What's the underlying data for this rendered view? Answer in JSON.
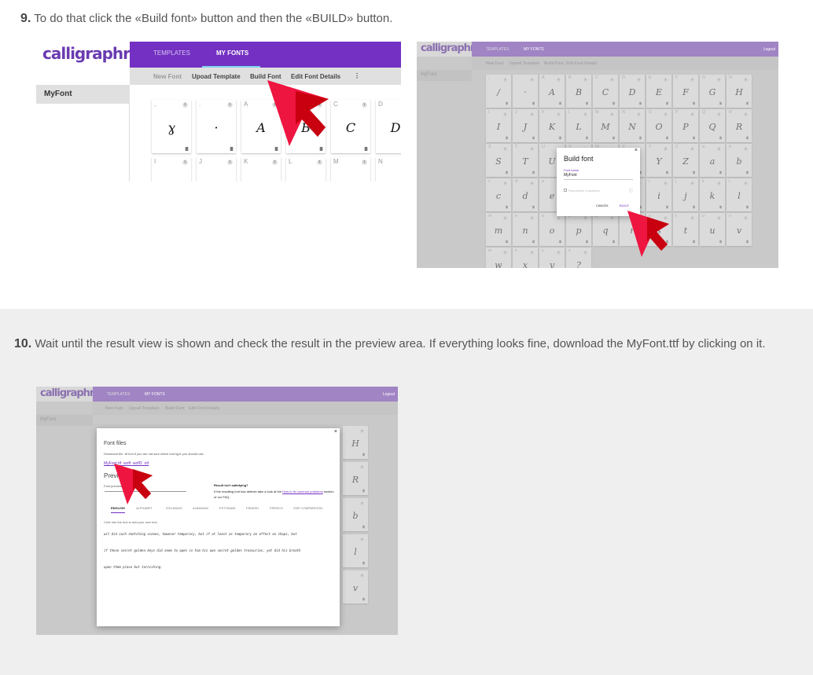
{
  "step9": {
    "number": "9.",
    "text": "To do that click the «Build font» button and then the «BUILD» button."
  },
  "step10": {
    "number": "10.",
    "text": "Wait until the result view is shown and check the result in the preview area. If everything looks fine, download the MyFont.ttf by clicking on it."
  },
  "app": {
    "logo": "calligraphr",
    "tabs": [
      "TEMPLATES",
      "MY FONTS"
    ],
    "logout": "Logout",
    "toolbar": [
      "New Font",
      "Upoad Template",
      "Build Font",
      "Edit Font Details",
      "⋮"
    ],
    "sidebar_item": "MyFont",
    "accent": "#7330c2"
  },
  "shot1": {
    "row1": [
      {
        "l": ",",
        "g": "ɣ"
      },
      {
        "l": ".",
        "g": "·"
      },
      {
        "l": "A",
        "g": "A"
      },
      {
        "l": "B",
        "g": "B"
      },
      {
        "l": "C",
        "g": "C"
      },
      {
        "l": "D",
        "g": "D"
      }
    ],
    "row2": [
      "I",
      "J",
      "K",
      "L",
      "M",
      "N"
    ]
  },
  "shot2": {
    "rows": [
      {
        "l": [
          ",",
          ".",
          "A",
          "B",
          "C",
          "D",
          "E",
          "F",
          "G",
          "H"
        ],
        "g": [
          "/",
          "·",
          "A",
          "B",
          "C",
          "D",
          "E",
          "F",
          "G",
          "H"
        ]
      },
      {
        "l": [
          "I",
          "J",
          "K",
          "L",
          "M",
          "N",
          "O",
          "P",
          "Q",
          "R"
        ],
        "g": [
          "I",
          "J",
          "K",
          "L",
          "M",
          "N",
          "O",
          "P",
          "Q",
          "R"
        ]
      },
      {
        "l": [
          "S",
          "T",
          "U",
          "V",
          "W",
          "X",
          "Y",
          "Z",
          "a",
          "b"
        ],
        "g": [
          "S",
          "T",
          "U",
          "V",
          "W",
          "X",
          "Y",
          "Z",
          "a",
          "b"
        ]
      },
      {
        "l": [
          "c",
          "d",
          "e",
          "f",
          "g",
          "h",
          "i",
          "j",
          "k",
          "l"
        ],
        "g": [
          "c",
          "d",
          "e",
          "f",
          "g",
          "h",
          "i",
          "j",
          "k",
          "l"
        ]
      },
      {
        "l": [
          "m",
          "n",
          "o",
          "p",
          "q",
          "r",
          "s",
          "t",
          "u",
          "v"
        ],
        "g": [
          "m",
          "n",
          "o",
          "p",
          "q",
          "r",
          "s",
          "t",
          "u",
          "v"
        ]
      },
      {
        "l": [
          "w",
          "x",
          "y",
          "z"
        ],
        "g": [
          "w",
          "x",
          "y",
          "?"
        ]
      }
    ],
    "dialog": {
      "title": "Build font",
      "field_label": "Font name",
      "field_value": "MyFont",
      "checkbox": "Randomize characters",
      "cancel": "CANCEL",
      "build": "BUILD"
    }
  },
  "shot3": {
    "side_glyphs": [
      "H",
      "R",
      "b",
      "l",
      "v"
    ],
    "dialog": {
      "title": "Font files",
      "desc": "Download the .ttf font if you are not sure which font type you should use.",
      "files": [
        "MyFont.ttf",
        "woff",
        "woff2",
        "otf"
      ],
      "preview": "Preview",
      "font_pre": "Font preview",
      "result_title": "Result isn't satisfying?",
      "result_text": "If the resulting font has defects take a look at the",
      "result_link": "How to fix common problems",
      "result_tail": "section of our FAQ.",
      "tabs": [
        "ENGLISH",
        "ALPHABET",
        "ICELANDIC",
        "ALBANIAN",
        "ESTONIAN",
        "FINNISH",
        "FRENCH",
        "SIZE COMPARISON"
      ],
      "hint": "Click into the text to add your own text.",
      "sample": [
        "wit did such sketching scenes, however temporary, but if at least as temporary an effect on shops, but",
        "if these secret golden keys did seem to open in him his own secret golden treasuries, yet did his breath",
        "upon them prove but tarnishing."
      ]
    }
  }
}
